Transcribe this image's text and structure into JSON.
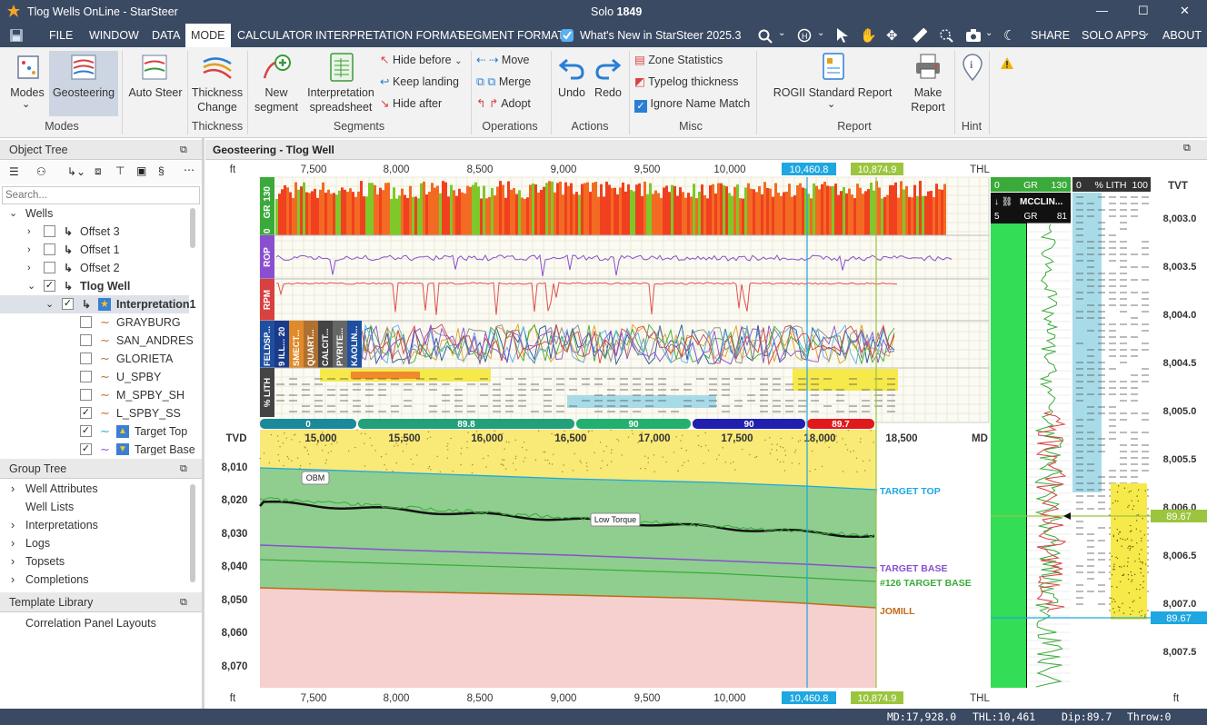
{
  "app": {
    "title": "Tlog Wells OnLine - StarSteer",
    "center_title_prefix": "Solo",
    "center_title_number": "1849",
    "window_controls": [
      "—",
      "☐",
      "✕"
    ]
  },
  "menu": {
    "items": [
      "FILE",
      "WINDOW",
      "DATA",
      "MODE",
      "CALCULATOR",
      "INTERPRETATION FORMAT",
      "SEGMENT FORMAT"
    ],
    "whats_new": "What's New in StarSteer 2025.3",
    "right_items": [
      "SHARE",
      "SOLO APPS",
      "ABOUT"
    ]
  },
  "ribbon": {
    "modes_label": "Modes",
    "geosteering_label": "Geosteering",
    "auto_steer_label": "Auto Steer",
    "thickness_change_label": "Thickness Change",
    "new_segment_label": "New segment",
    "interp_spreadsheet_label": "Interpretation spreadsheet",
    "hide_before": "Hide before",
    "keep_landing": "Keep landing",
    "hide_after": "Hide after",
    "move": "Move",
    "merge": "Merge",
    "adopt": "Adopt",
    "undo": "Undo",
    "redo": "Redo",
    "zone_statistics": "Zone Statistics",
    "typelog_thickness": "Typelog thickness",
    "ignore_name_match": "Ignore Name Match",
    "rogii_report": "ROGII Standard Report",
    "make_report": "Make Report",
    "groups": [
      "Modes",
      "Thickness",
      "Segments",
      "Operations",
      "Actions",
      "Misc",
      "Report",
      "Hint"
    ]
  },
  "object_tree": {
    "title": "Object Tree",
    "search_placeholder": "Search...",
    "rows": [
      {
        "label": "Wells",
        "indent": 0,
        "checkbox": false,
        "checked": false,
        "bold": false
      },
      {
        "label": "Offset 3",
        "indent": 1,
        "checkbox": true,
        "checked": false,
        "bold": false
      },
      {
        "label": "Offset 1",
        "indent": 1,
        "checkbox": true,
        "checked": false,
        "bold": false
      },
      {
        "label": "Offset 2",
        "indent": 1,
        "checkbox": true,
        "checked": false,
        "bold": false
      },
      {
        "label": "Tlog Well",
        "indent": 1,
        "checkbox": true,
        "checked": true,
        "bold": true
      },
      {
        "label": "Interpretation1",
        "indent": 2,
        "checkbox": true,
        "checked": true,
        "bold": true
      },
      {
        "label": "GRAYBURG",
        "indent": 3,
        "checkbox": true,
        "checked": false,
        "bold": false
      },
      {
        "label": "SAN_ANDRES",
        "indent": 3,
        "checkbox": true,
        "checked": false,
        "bold": false
      },
      {
        "label": "GLORIETA",
        "indent": 3,
        "checkbox": true,
        "checked": false,
        "bold": false
      },
      {
        "label": "U_SPBY",
        "indent": 3,
        "checkbox": true,
        "checked": false,
        "bold": false
      },
      {
        "label": "M_SPBY_SH",
        "indent": 3,
        "checkbox": true,
        "checked": false,
        "bold": false
      },
      {
        "label": "L_SPBY_SS",
        "indent": 3,
        "checkbox": true,
        "checked": true,
        "bold": false
      },
      {
        "label": "Target Top",
        "indent": 3,
        "checkbox": true,
        "checked": true,
        "bold": false
      },
      {
        "label": "Target Base",
        "indent": 3,
        "checkbox": true,
        "checked": true,
        "bold": false
      }
    ]
  },
  "group_tree": {
    "title": "Group Tree",
    "rows": [
      "Well Attributes",
      "Well Lists",
      "Interpretations",
      "Logs",
      "Topsets",
      "Completions"
    ]
  },
  "template_library": {
    "title": "Template Library",
    "rows": [
      "Correlation Panel Layouts"
    ]
  },
  "main": {
    "title": "Geosteering - Tlog Well",
    "unit": "ft",
    "thl_label": "THL",
    "md_label": "MD",
    "tvd_label": "TVD",
    "tvt_label": "TVT",
    "top_ticks": [
      "7,500",
      "8,000",
      "8,500",
      "9,000",
      "9,500",
      "10,000"
    ],
    "cursor_thl": "10,460.8",
    "end_thl": "10,874.9",
    "md_ticks": [
      "15,000",
      "15,500",
      "16,000",
      "16,500",
      "17,000",
      "17,500",
      "18,000",
      "18,500"
    ],
    "tvd_ticks": [
      "8,010",
      "8,020",
      "8,030",
      "8,040",
      "8,050",
      "8,060",
      "8,070"
    ],
    "dip_segments": [
      "0",
      "89.8",
      "90",
      "90",
      "89.7"
    ],
    "track_labels": {
      "gr": "GR",
      "gr_min": "0",
      "gr_max": "130",
      "rop": "ROP",
      "rpm": "RPM",
      "lith": "% LITH"
    },
    "mineral_labels": [
      "FELDSP...",
      "9 ILL... 20",
      "SMECT...",
      "QUART...",
      "CALCIT...",
      "PYRITE...",
      "KAOLIN..."
    ],
    "annotations": {
      "obm": "OBM",
      "low_torque": "Low Torque"
    },
    "horizons": [
      "TARGET TOP",
      "TARGET BASE",
      "#126 TARGET BASE",
      "JOMILL"
    ]
  },
  "typelog": {
    "gr_min": "0",
    "gr_label": "GR",
    "gr_max": "130",
    "lith_min": "0",
    "lith_label": "% LITH",
    "lith_max": "100",
    "offset_name": "MCCLIN...",
    "offset_min": "5",
    "offset_gr": "GR",
    "offset_max": "81",
    "tvt_ticks": [
      "8,003.0",
      "8,003.5",
      "8,004.0",
      "8,004.5",
      "8,005.0",
      "8,005.5",
      "8,006.0",
      "8,006.5",
      "8,007.0",
      "8,007.5"
    ],
    "marker_1": "89.67",
    "marker_2": "89.67"
  },
  "status": {
    "md": "MD:17,928.0",
    "thl": "THL:10,461",
    "dip": "Dip:89.7",
    "throw": "Throw:0"
  },
  "colors": {
    "title_bg": "#3b4a63",
    "accent_blue": "#1ea7e0",
    "accent_green": "#9bc53d",
    "zone_green": "#8fce8f",
    "zone_pink": "#f6cfcf",
    "zone_yellow": "#f9e977"
  }
}
